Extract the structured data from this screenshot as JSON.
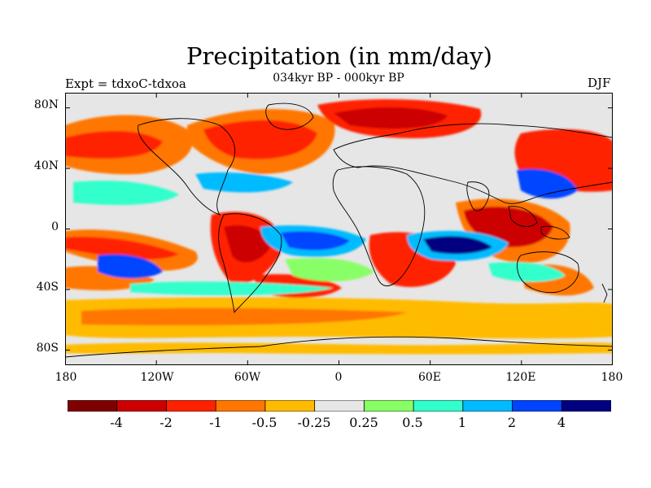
{
  "title": "Precipitation (in mm/day)",
  "subtitle": "034kyr BP - 000kyr BP",
  "left_label": "Expt = tdxoC-tdxoa",
  "right_label": "DJF",
  "map": {
    "projection": "cylindrical-equidistant",
    "lon_range": [
      -180,
      180
    ],
    "lat_range": [
      -90,
      90
    ],
    "background_color": "#e6e6e6",
    "lat_ticks": [
      {
        "value": 80,
        "label": "80N"
      },
      {
        "value": 40,
        "label": "40N"
      },
      {
        "value": 0,
        "label": "0"
      },
      {
        "value": -40,
        "label": "40S"
      },
      {
        "value": -80,
        "label": "80S"
      }
    ],
    "lon_ticks": [
      {
        "value": -180,
        "label": "180"
      },
      {
        "value": -120,
        "label": "120W"
      },
      {
        "value": -60,
        "label": "60W"
      },
      {
        "value": 0,
        "label": "0"
      },
      {
        "value": 60,
        "label": "60E"
      },
      {
        "value": 120,
        "label": "120E"
      },
      {
        "value": 180,
        "label": "180"
      }
    ]
  },
  "colorbar": {
    "colors": [
      "#7f0000",
      "#cc0000",
      "#ff2200",
      "#ff7700",
      "#ffbb00",
      "#e6e6e6",
      "#88ff66",
      "#33ffcc",
      "#00bbff",
      "#0044ff",
      "#000080"
    ],
    "labels": [
      "-4",
      "-2",
      "-1",
      "-0.5",
      "-0.25",
      "0.25",
      "0.5",
      "1",
      "2",
      "4"
    ]
  }
}
